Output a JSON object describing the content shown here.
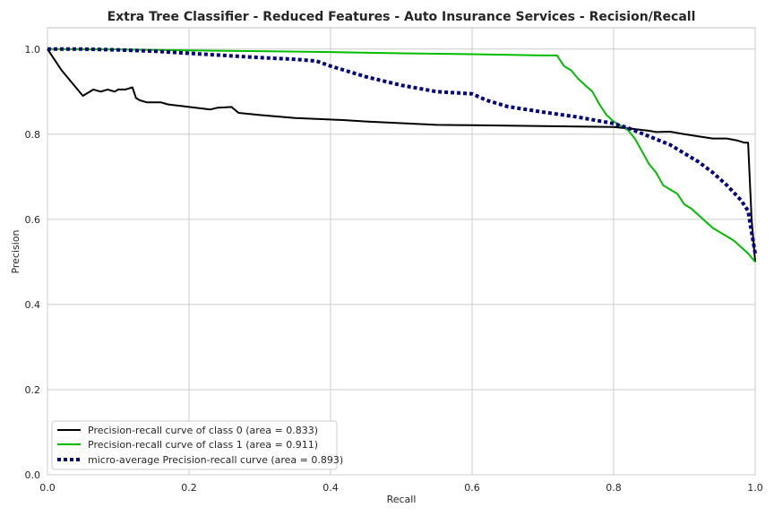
{
  "chart_data": {
    "type": "line",
    "title": "Extra Tree Classifier - Reduced Features - Auto Insurance Services - Recision/Recall",
    "xlabel": "Recall",
    "ylabel": "Precision",
    "xlim": [
      0.0,
      1.0
    ],
    "ylim": [
      0.0,
      1.05
    ],
    "xticks": [
      "0.0",
      "0.2",
      "0.4",
      "0.6",
      "0.8",
      "1.0"
    ],
    "yticks": [
      "0.0",
      "0.2",
      "0.4",
      "0.6",
      "0.8",
      "1.0"
    ],
    "grid": true,
    "legend_position": "lower-left",
    "series": [
      {
        "name": "Precision-recall curve of class 0 (area = 0.833)",
        "color": "#000000",
        "style": "solid",
        "x": [
          0.0,
          0.02,
          0.04,
          0.05,
          0.065,
          0.075,
          0.085,
          0.095,
          0.1,
          0.11,
          0.12,
          0.125,
          0.13,
          0.14,
          0.15,
          0.16,
          0.17,
          0.18,
          0.19,
          0.2,
          0.22,
          0.23,
          0.24,
          0.26,
          0.27,
          0.3,
          0.35,
          0.38,
          0.42,
          0.45,
          0.5,
          0.55,
          0.6,
          0.65,
          0.7,
          0.75,
          0.8,
          0.83,
          0.85,
          0.86,
          0.88,
          0.9,
          0.92,
          0.94,
          0.96,
          0.975,
          0.985,
          0.99,
          0.995,
          1.0
        ],
        "y": [
          1.0,
          0.95,
          0.91,
          0.89,
          0.905,
          0.9,
          0.905,
          0.9,
          0.905,
          0.905,
          0.91,
          0.885,
          0.88,
          0.875,
          0.875,
          0.875,
          0.87,
          0.868,
          0.866,
          0.864,
          0.86,
          0.858,
          0.862,
          0.864,
          0.85,
          0.845,
          0.838,
          0.836,
          0.833,
          0.83,
          0.826,
          0.822,
          0.821,
          0.82,
          0.819,
          0.818,
          0.817,
          0.812,
          0.808,
          0.805,
          0.806,
          0.8,
          0.795,
          0.79,
          0.79,
          0.785,
          0.78,
          0.78,
          0.6,
          0.5
        ]
      },
      {
        "name": "Precision-recall curve of class 1 (area = 0.911)",
        "color": "#00bb00",
        "style": "solid",
        "x": [
          0.0,
          0.1,
          0.2,
          0.3,
          0.4,
          0.5,
          0.6,
          0.7,
          0.72,
          0.73,
          0.74,
          0.75,
          0.76,
          0.77,
          0.78,
          0.79,
          0.8,
          0.81,
          0.82,
          0.83,
          0.84,
          0.85,
          0.86,
          0.87,
          0.88,
          0.89,
          0.9,
          0.91,
          0.92,
          0.93,
          0.94,
          0.95,
          0.96,
          0.97,
          0.98,
          0.99,
          1.0
        ],
        "y": [
          1.0,
          0.999,
          0.997,
          0.995,
          0.993,
          0.99,
          0.988,
          0.985,
          0.985,
          0.96,
          0.95,
          0.93,
          0.915,
          0.9,
          0.87,
          0.845,
          0.83,
          0.82,
          0.81,
          0.79,
          0.76,
          0.73,
          0.71,
          0.68,
          0.67,
          0.66,
          0.635,
          0.625,
          0.61,
          0.595,
          0.58,
          0.57,
          0.56,
          0.55,
          0.535,
          0.52,
          0.5
        ]
      },
      {
        "name": "micro-average Precision-recall curve (area = 0.893)",
        "color": "#000080",
        "style": "dotted",
        "x": [
          0.0,
          0.05,
          0.1,
          0.15,
          0.2,
          0.25,
          0.3,
          0.35,
          0.38,
          0.4,
          0.42,
          0.45,
          0.5,
          0.55,
          0.6,
          0.62,
          0.65,
          0.7,
          0.75,
          0.8,
          0.82,
          0.85,
          0.88,
          0.9,
          0.92,
          0.94,
          0.96,
          0.98,
          0.99,
          0.995,
          1.0
        ],
        "y": [
          1.0,
          1.0,
          0.998,
          0.995,
          0.99,
          0.985,
          0.98,
          0.976,
          0.972,
          0.96,
          0.95,
          0.935,
          0.915,
          0.9,
          0.895,
          0.88,
          0.865,
          0.852,
          0.84,
          0.825,
          0.815,
          0.795,
          0.775,
          0.755,
          0.735,
          0.71,
          0.68,
          0.645,
          0.62,
          0.57,
          0.52
        ]
      }
    ]
  }
}
